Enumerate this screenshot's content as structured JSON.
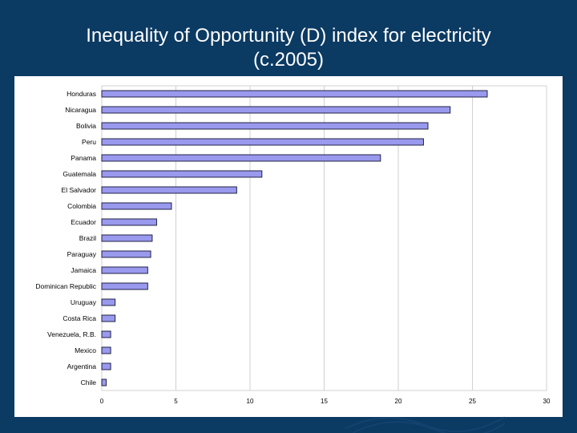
{
  "slide": {
    "title_line1": "Inequality of Opportunity (D) index for electricity",
    "title_line2": "(c.2005)"
  },
  "colors": {
    "background": "#0b3a63",
    "bar_fill": "#9999ee",
    "bar_stroke": "#222244",
    "grid": "#d0d0d0"
  },
  "chart_data": {
    "type": "bar",
    "orientation": "horizontal",
    "title": "",
    "xlabel": "",
    "ylabel": "",
    "categories": [
      "Honduras",
      "Nicaragua",
      "Bolivia",
      "Peru",
      "Panama",
      "Guatemala",
      "El Salvador",
      "Colombia",
      "Ecuador",
      "Brazil",
      "Paraguay",
      "Jamaica",
      "Dominican Republic",
      "Uruguay",
      "Costa Rica",
      "Venezuela, R.B.",
      "Mexico",
      "Argentina",
      "Chile"
    ],
    "values": [
      26.0,
      23.5,
      22.0,
      21.7,
      18.8,
      10.8,
      9.1,
      4.7,
      3.7,
      3.4,
      3.3,
      3.1,
      3.1,
      0.9,
      0.9,
      0.6,
      0.6,
      0.6,
      0.3
    ],
    "xlim": [
      0,
      30
    ],
    "xticks": [
      "0",
      "5",
      "10",
      "15",
      "20",
      "25",
      "30"
    ],
    "grid": "vertical"
  }
}
